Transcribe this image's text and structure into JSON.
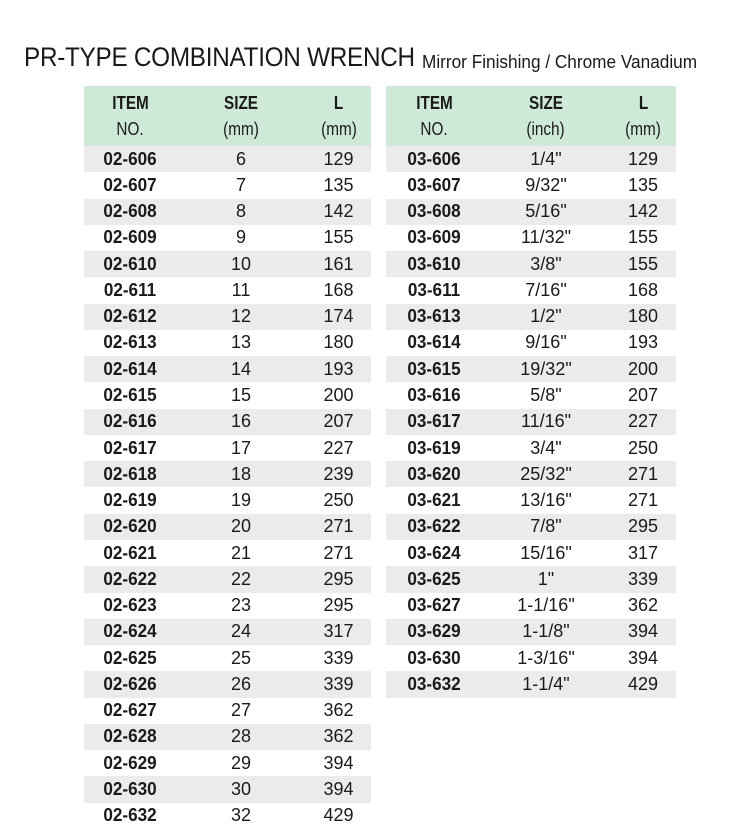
{
  "title": {
    "main": "PR-TYPE COMBINATION WRENCH",
    "subtitle": "Mirror Finishing / Chrome Vanadium"
  },
  "colors": {
    "header_bg": "#cfe9d8",
    "stripe_bg": "#ebebeb"
  },
  "metric_table": {
    "headers": [
      [
        "ITEM",
        "NO."
      ],
      [
        "SIZE",
        "(mm)"
      ],
      [
        "L",
        "(mm)"
      ]
    ],
    "rows": [
      [
        "02-606",
        "6",
        "129"
      ],
      [
        "02-607",
        "7",
        "135"
      ],
      [
        "02-608",
        "8",
        "142"
      ],
      [
        "02-609",
        "9",
        "155"
      ],
      [
        "02-610",
        "10",
        "161"
      ],
      [
        "02-611",
        "11",
        "168"
      ],
      [
        "02-612",
        "12",
        "174"
      ],
      [
        "02-613",
        "13",
        "180"
      ],
      [
        "02-614",
        "14",
        "193"
      ],
      [
        "02-615",
        "15",
        "200"
      ],
      [
        "02-616",
        "16",
        "207"
      ],
      [
        "02-617",
        "17",
        "227"
      ],
      [
        "02-618",
        "18",
        "239"
      ],
      [
        "02-619",
        "19",
        "250"
      ],
      [
        "02-620",
        "20",
        "271"
      ],
      [
        "02-621",
        "21",
        "271"
      ],
      [
        "02-622",
        "22",
        "295"
      ],
      [
        "02-623",
        "23",
        "295"
      ],
      [
        "02-624",
        "24",
        "317"
      ],
      [
        "02-625",
        "25",
        "339"
      ],
      [
        "02-626",
        "26",
        "339"
      ],
      [
        "02-627",
        "27",
        "362"
      ],
      [
        "02-628",
        "28",
        "362"
      ],
      [
        "02-629",
        "29",
        "394"
      ],
      [
        "02-630",
        "30",
        "394"
      ],
      [
        "02-632",
        "32",
        "429"
      ]
    ]
  },
  "inch_table": {
    "headers": [
      [
        "ITEM",
        "NO."
      ],
      [
        "SIZE",
        "(inch)"
      ],
      [
        "L",
        "(mm)"
      ]
    ],
    "rows": [
      [
        "03-606",
        "1/4\"",
        "129"
      ],
      [
        "03-607",
        "9/32\"",
        "135"
      ],
      [
        "03-608",
        "5/16\"",
        "142"
      ],
      [
        "03-609",
        "11/32\"",
        "155"
      ],
      [
        "03-610",
        "3/8\"",
        "155"
      ],
      [
        "03-611",
        "7/16\"",
        "168"
      ],
      [
        "03-613",
        "1/2\"",
        "180"
      ],
      [
        "03-614",
        "9/16\"",
        "193"
      ],
      [
        "03-615",
        "19/32\"",
        "200"
      ],
      [
        "03-616",
        "5/8\"",
        "207"
      ],
      [
        "03-617",
        "11/16\"",
        "227"
      ],
      [
        "03-619",
        "3/4\"",
        "250"
      ],
      [
        "03-620",
        "25/32\"",
        "271"
      ],
      [
        "03-621",
        "13/16\"",
        "271"
      ],
      [
        "03-622",
        "7/8\"",
        "295"
      ],
      [
        "03-624",
        "15/16\"",
        "317"
      ],
      [
        "03-625",
        "1\"",
        "339"
      ],
      [
        "03-627",
        "1-1/16\"",
        "362"
      ],
      [
        "03-629",
        "1-1/8\"",
        "394"
      ],
      [
        "03-630",
        "1-3/16\"",
        "394"
      ],
      [
        "03-632",
        "1-1/4\"",
        "429"
      ]
    ]
  }
}
